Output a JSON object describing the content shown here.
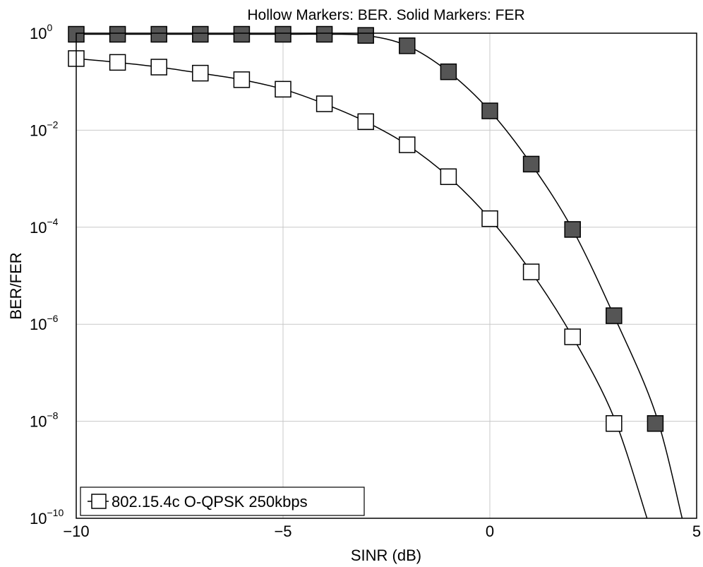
{
  "chart_data": {
    "type": "line",
    "title": "Hollow Markers: BER. Solid Markers: FER",
    "xlabel": "SINR (dB)",
    "ylabel": "BER/FER",
    "xlim": [
      -10,
      5
    ],
    "ylim_exp": [
      -10,
      0
    ],
    "y_scale": "log",
    "grid": true,
    "legend_position": "bottom-left",
    "x_ticks": [
      "−10",
      "−5",
      "0",
      "5"
    ],
    "y_ticks": [
      {
        "base": "10",
        "exp": "0"
      },
      {
        "base": "10",
        "exp": "−2"
      },
      {
        "base": "10",
        "exp": "−4"
      },
      {
        "base": "10",
        "exp": "−6"
      },
      {
        "base": "10",
        "exp": "−8"
      },
      {
        "base": "10",
        "exp": "−10"
      }
    ],
    "legend": [
      {
        "label": "802.15.4c O-QPSK 250kbps",
        "marker": "hollow-square"
      }
    ],
    "series": [
      {
        "marker": "hollow-square",
        "color": "#000000",
        "points": [
          {
            "x": -10,
            "y": 0.3
          },
          {
            "x": -9,
            "y": 0.25
          },
          {
            "x": -8,
            "y": 0.2
          },
          {
            "x": -7,
            "y": 0.15
          },
          {
            "x": -6,
            "y": 0.11
          },
          {
            "x": -5,
            "y": 0.07
          },
          {
            "x": -4,
            "y": 0.035
          },
          {
            "x": -3,
            "y": 0.015
          },
          {
            "x": -2,
            "y": 0.005
          },
          {
            "x": -1,
            "y": 0.0011
          },
          {
            "x": 0,
            "y": 0.00015
          },
          {
            "x": 1,
            "y": 1.2e-05
          },
          {
            "x": 2,
            "y": 5.5e-07
          },
          {
            "x": 3,
            "y": 9e-09
          }
        ],
        "curve": [
          {
            "x": -10,
            "y": 0.3
          },
          {
            "x": -9,
            "y": 0.25
          },
          {
            "x": -8,
            "y": 0.2
          },
          {
            "x": -7,
            "y": 0.15
          },
          {
            "x": -6,
            "y": 0.11
          },
          {
            "x": -5,
            "y": 0.07
          },
          {
            "x": -4,
            "y": 0.035
          },
          {
            "x": -3,
            "y": 0.015
          },
          {
            "x": -2,
            "y": 0.005
          },
          {
            "x": -1,
            "y": 0.0011
          },
          {
            "x": 0,
            "y": 0.00015
          },
          {
            "x": 1,
            "y": 1.2e-05
          },
          {
            "x": 2,
            "y": 5.5e-07
          },
          {
            "x": 3,
            "y": 1.2e-08
          },
          {
            "x": 3.8,
            "y": 1e-10
          }
        ]
      },
      {
        "marker": "solid-square",
        "color": "#555555",
        "points": [
          {
            "x": -10,
            "y": 0.95
          },
          {
            "x": -9,
            "y": 0.95
          },
          {
            "x": -8,
            "y": 0.95
          },
          {
            "x": -7,
            "y": 0.95
          },
          {
            "x": -6,
            "y": 0.95
          },
          {
            "x": -5,
            "y": 0.95
          },
          {
            "x": -4,
            "y": 0.95
          },
          {
            "x": -3,
            "y": 0.9
          },
          {
            "x": -2,
            "y": 0.55
          },
          {
            "x": -1,
            "y": 0.16
          },
          {
            "x": 0,
            "y": 0.025
          },
          {
            "x": 1,
            "y": 0.002
          },
          {
            "x": 2,
            "y": 9e-05
          },
          {
            "x": 3,
            "y": 1.5e-06
          },
          {
            "x": 4,
            "y": 9e-09
          }
        ],
        "curve": [
          {
            "x": -10,
            "y": 0.95
          },
          {
            "x": -9,
            "y": 0.95
          },
          {
            "x": -8,
            "y": 0.95
          },
          {
            "x": -7,
            "y": 0.95
          },
          {
            "x": -6,
            "y": 0.95
          },
          {
            "x": -5,
            "y": 0.95
          },
          {
            "x": -4,
            "y": 0.95
          },
          {
            "x": -3,
            "y": 0.9
          },
          {
            "x": -2,
            "y": 0.55
          },
          {
            "x": -1,
            "y": 0.16
          },
          {
            "x": 0,
            "y": 0.025
          },
          {
            "x": 1,
            "y": 0.002
          },
          {
            "x": 2,
            "y": 9e-05
          },
          {
            "x": 3,
            "y": 1.5e-06
          },
          {
            "x": 4,
            "y": 1.5e-08
          },
          {
            "x": 4.65,
            "y": 1e-10
          }
        ]
      }
    ]
  }
}
